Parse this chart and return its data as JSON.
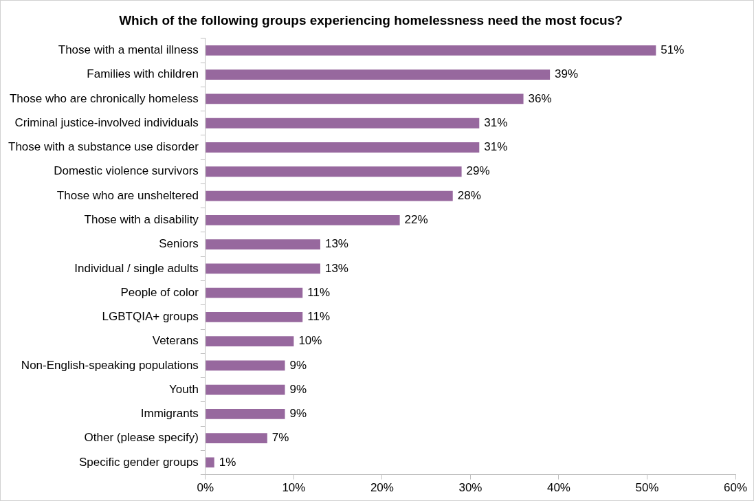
{
  "chart_data": {
    "type": "bar",
    "orientation": "horizontal",
    "title": "Which of the following groups experiencing homelessness need the most focus?",
    "categories": [
      "Those with a mental illness",
      "Families with children",
      "Those who are chronically homeless",
      "Criminal justice-involved individuals",
      "Those with a substance use disorder",
      "Domestic violence survivors",
      "Those who are unsheltered",
      "Those with a disability",
      "Seniors",
      "Individual / single adults",
      "People of color",
      "LGBTQIA+ groups",
      "Veterans",
      "Non-English-speaking populations",
      "Youth",
      "Immigrants",
      "Other (please specify)",
      "Specific gender groups"
    ],
    "values": [
      51,
      39,
      36,
      31,
      31,
      29,
      28,
      22,
      13,
      13,
      11,
      11,
      10,
      9,
      9,
      9,
      7,
      1
    ],
    "value_labels": [
      "51%",
      "39%",
      "36%",
      "31%",
      "31%",
      "29%",
      "28%",
      "22%",
      "13%",
      "13%",
      "11%",
      "11%",
      "10%",
      "9%",
      "9%",
      "9%",
      "7%",
      "1%"
    ],
    "color": "#97689e",
    "xlim": [
      0,
      60
    ],
    "xticks": [
      {
        "value": 0,
        "label": "0%"
      },
      {
        "value": 10,
        "label": "10%"
      },
      {
        "value": 20,
        "label": "20%"
      },
      {
        "value": 30,
        "label": "30%"
      },
      {
        "value": 40,
        "label": "40%"
      },
      {
        "value": 50,
        "label": "50%"
      },
      {
        "value": 60,
        "label": "60%"
      }
    ]
  }
}
